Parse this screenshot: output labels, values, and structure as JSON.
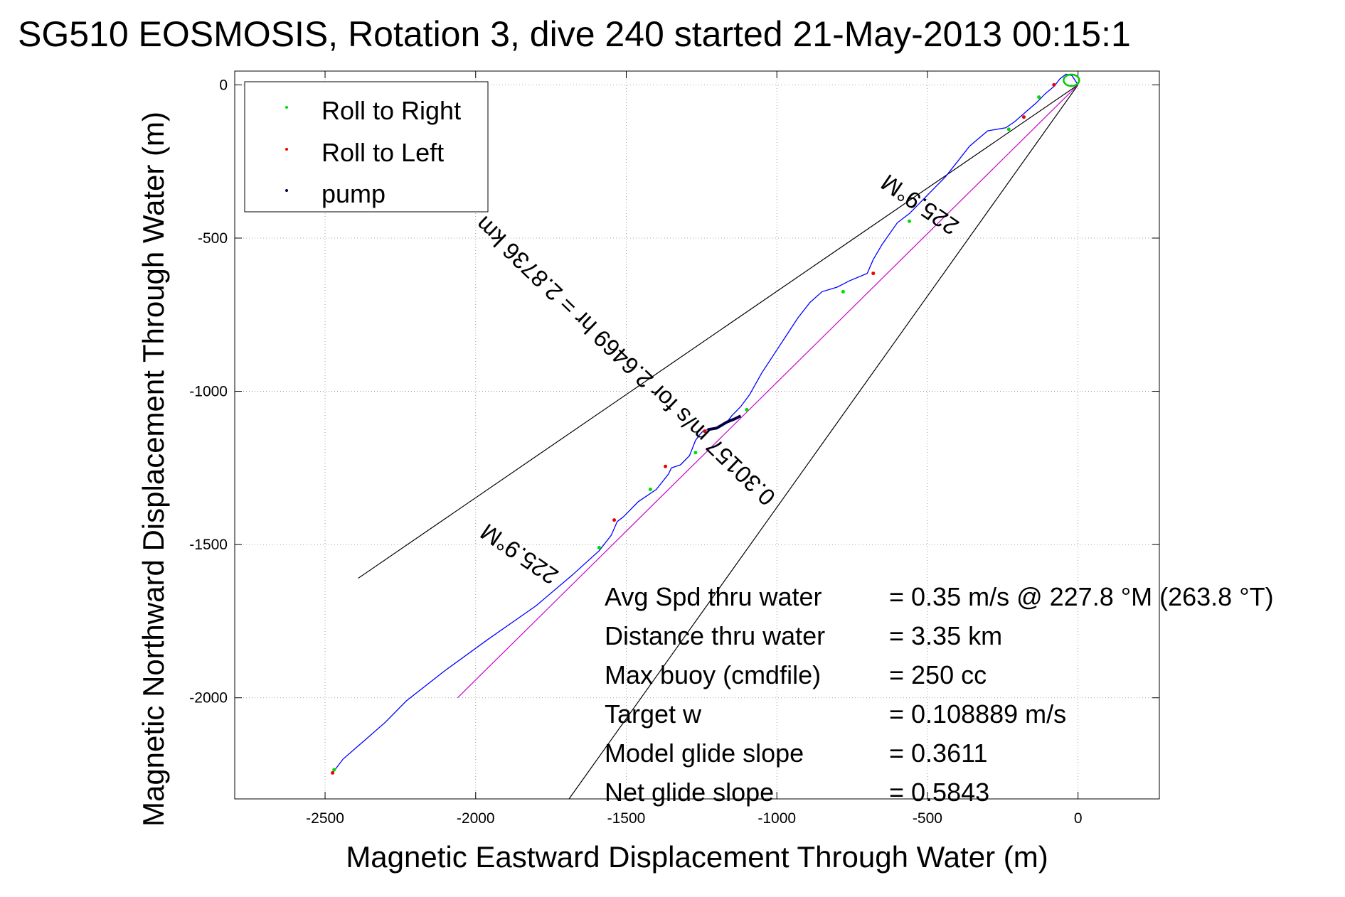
{
  "title": "SG510 EOSMOSIS, Rotation 3, dive 240 started 21-May-2013 00:15:1",
  "chart_data": {
    "type": "line",
    "xlabel": "Magnetic Eastward Displacement Through Water (m)",
    "ylabel": "Magnetic Northward Displacement Through Water (m)",
    "xlim": [
      -2800,
      270
    ],
    "ylim": [
      -2330,
      45
    ],
    "xticks": [
      -2500,
      -2000,
      -1500,
      -1000,
      -500,
      0
    ],
    "yticks": [
      0,
      -500,
      -1000,
      -1500,
      -2000
    ],
    "xtick_labels": [
      "-2500",
      "-2000",
      "-1500",
      "-1000",
      "-500",
      "0"
    ],
    "ytick_labels": [
      "0",
      "-500",
      "-1000",
      "-1500",
      "-2000"
    ],
    "grid": true,
    "legend_position": "top-left",
    "legend": [
      {
        "label": "Roll to Right",
        "color": "#00dd00"
      },
      {
        "label": "Roll to Left",
        "color": "#ee0000"
      },
      {
        "label": "pump",
        "color": "#000044"
      }
    ],
    "track": {
      "color": "#0000ff",
      "x": [
        -2475,
        -2440,
        -2370,
        -2300,
        -2230,
        -2100,
        -1960,
        -1800,
        -1680,
        -1590,
        -1550,
        -1530,
        -1510,
        -1460,
        -1400,
        -1360,
        -1350,
        -1320,
        -1290,
        -1270,
        -1255,
        -1245,
        -1230,
        -1200,
        -1165,
        -1150,
        -1120,
        -1090,
        -1050,
        -1010,
        -970,
        -930,
        -890,
        -850,
        -800,
        -780,
        -760,
        -700,
        -680,
        -650,
        -600,
        -560,
        -540,
        -500,
        -440,
        -400,
        -360,
        -300,
        -240,
        -210,
        -170,
        -140,
        -110,
        -80,
        -60,
        -40,
        -20,
        0
      ],
      "y": [
        -2245,
        -2200,
        -2140,
        -2080,
        -2010,
        -1910,
        -1810,
        -1700,
        -1600,
        -1520,
        -1470,
        -1425,
        -1410,
        -1360,
        -1320,
        -1270,
        -1250,
        -1240,
        -1210,
        -1160,
        -1140,
        -1130,
        -1125,
        -1120,
        -1100,
        -1080,
        -1050,
        -1010,
        -940,
        -880,
        -820,
        -760,
        -710,
        -675,
        -660,
        -650,
        -640,
        -615,
        -570,
        -520,
        -450,
        -420,
        -400,
        -360,
        -300,
        -250,
        -200,
        -150,
        -140,
        -120,
        -85,
        -60,
        -30,
        -5,
        20,
        35,
        30,
        0
      ]
    },
    "pump_segment": {
      "color": "#000044",
      "x": [
        -1230,
        -1200,
        -1165,
        -1140,
        -1120
      ],
      "y": [
        -1125,
        -1120,
        -1100,
        -1090,
        -1080
      ]
    },
    "roll_right_points": {
      "x": [
        -2470,
        -1590,
        -1420,
        -1270,
        -1100,
        -780,
        -560,
        -230,
        -130
      ],
      "y": [
        -2235,
        -1510,
        -1320,
        -1200,
        -1060,
        -675,
        -445,
        -145,
        -40
      ]
    },
    "roll_left_points": {
      "x": [
        -2475,
        -1540,
        -1370,
        -1240,
        -680,
        -180,
        -80
      ],
      "y": [
        -2245,
        -1420,
        -1245,
        -1130,
        -615,
        -105,
        0
      ]
    },
    "reference_lines": [
      {
        "name": "heading-ray-upper",
        "color": "#000000",
        "x": [
          0,
          -2390
        ],
        "y": [
          0,
          -1610
        ]
      },
      {
        "name": "heading-ray-lower",
        "color": "#000000",
        "x": [
          0,
          -1690
        ],
        "y": [
          0,
          -2330
        ]
      },
      {
        "name": "net-track",
        "color": "#cc00cc",
        "x": [
          0,
          -2060
        ],
        "y": [
          0,
          -2000
        ]
      }
    ],
    "annotations": [
      {
        "text": "225.9°M",
        "x": -1720,
        "y": -1590,
        "angle": 214.4
      },
      {
        "text": "225.9°M",
        "x": -390,
        "y": -450,
        "angle": 214.4
      },
      {
        "text": "0.30157 m/s for 2.6469 hr = 2.8736 km",
        "x": -1000,
        "y": -1340,
        "angle": 223.9
      }
    ],
    "summary": [
      {
        "label": "Avg Spd thru water",
        "value": "=  0.35 m/s @ 227.8 °M (263.8 °T)"
      },
      {
        "label": "Distance thru water",
        "value": "=  3.35 km"
      },
      {
        "label": "Max buoy (cmdfile)",
        "value": "= 250 cc"
      },
      {
        "label": "Target w",
        "value": "= 0.108889 m/s"
      },
      {
        "label": "Model glide slope",
        "value": "= 0.3611"
      },
      {
        "label": "Net glide slope",
        "value": "= 0.5843"
      }
    ]
  }
}
